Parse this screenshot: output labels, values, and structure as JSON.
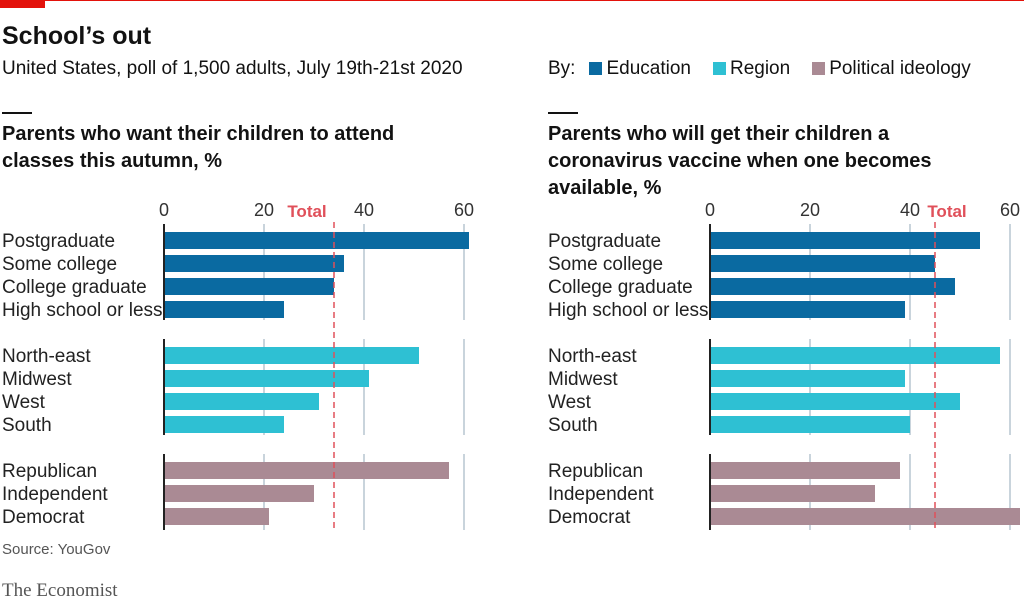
{
  "title": "School’s out",
  "subtitle": "United States, poll of 1,500 adults, July 19th-21st 2020",
  "legend": {
    "by_label": "By:",
    "items": [
      {
        "label": "Education",
        "color": "#0a6aa1"
      },
      {
        "label": "Region",
        "color": "#2ec0d3"
      },
      {
        "label": "Political ideology",
        "color": "#aa8a94"
      }
    ]
  },
  "source": "Source: YouGov",
  "brand": "The Economist",
  "chart_data": [
    {
      "type": "bar",
      "orientation": "horizontal",
      "title": "Parents who want their children to attend classes this autumn, %",
      "categories": [
        "Postgraduate",
        "Some college",
        "College graduate",
        "High school or less",
        "North-east",
        "Midwest",
        "West",
        "South",
        "Republican",
        "Independent",
        "Democrat"
      ],
      "groups": [
        "Education",
        "Education",
        "Education",
        "Education",
        "Region",
        "Region",
        "Region",
        "Region",
        "Political ideology",
        "Political ideology",
        "Political ideology"
      ],
      "values": [
        61,
        36,
        34,
        24,
        51,
        41,
        31,
        24,
        57,
        30,
        21
      ],
      "xlim": [
        0,
        60
      ],
      "xticks": [
        0,
        20,
        40,
        60
      ],
      "reference": {
        "label": "Total",
        "value": 34,
        "color": "#e0505a"
      },
      "grid": true
    },
    {
      "type": "bar",
      "orientation": "horizontal",
      "title": "Parents who will get their children a coronavirus vaccine when one becomes available, %",
      "categories": [
        "Postgraduate",
        "Some college",
        "College graduate",
        "High school or less",
        "North-east",
        "Midwest",
        "West",
        "South",
        "Republican",
        "Independent",
        "Democrat"
      ],
      "groups": [
        "Education",
        "Education",
        "Education",
        "Education",
        "Region",
        "Region",
        "Region",
        "Region",
        "Political ideology",
        "Political ideology",
        "Political ideology"
      ],
      "values": [
        54,
        45,
        49,
        39,
        58,
        39,
        50,
        40,
        38,
        33,
        62
      ],
      "xlim": [
        0,
        60
      ],
      "xticks": [
        0,
        20,
        40,
        60
      ],
      "reference": {
        "label": "Total",
        "value": 45,
        "color": "#e0505a"
      },
      "grid": true
    }
  ]
}
